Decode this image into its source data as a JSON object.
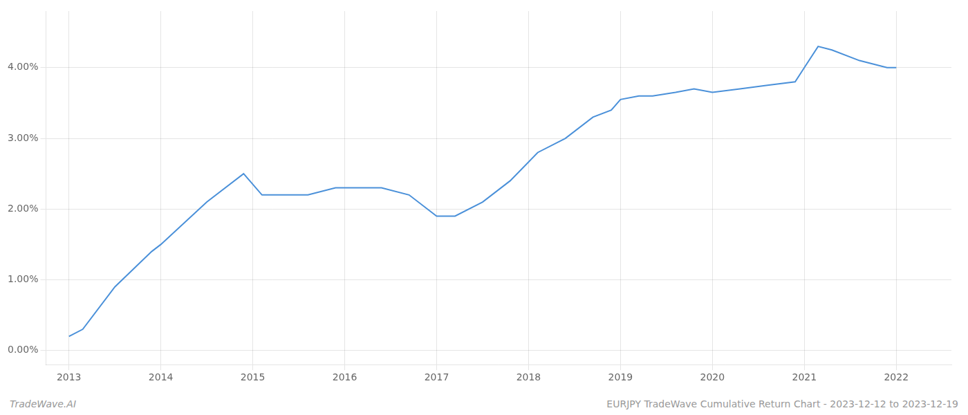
{
  "chart_data": {
    "type": "line",
    "x": [
      2013.0,
      2013.15,
      2013.5,
      2013.9,
      2014.0,
      2014.5,
      2014.9,
      2015.1,
      2015.3,
      2015.6,
      2015.9,
      2016.1,
      2016.4,
      2016.7,
      2017.0,
      2017.2,
      2017.5,
      2017.8,
      2018.1,
      2018.4,
      2018.7,
      2018.9,
      2019.0,
      2019.2,
      2019.35,
      2019.6,
      2019.8,
      2020.0,
      2020.3,
      2020.6,
      2020.9,
      2021.0,
      2021.15,
      2021.3,
      2021.6,
      2021.9,
      2022.0
    ],
    "values": [
      0.002,
      0.003,
      0.009,
      0.014,
      0.015,
      0.021,
      0.025,
      0.022,
      0.022,
      0.022,
      0.023,
      0.023,
      0.023,
      0.022,
      0.019,
      0.019,
      0.021,
      0.024,
      0.028,
      0.03,
      0.033,
      0.034,
      0.0355,
      0.036,
      0.036,
      0.0365,
      0.037,
      0.0365,
      0.037,
      0.0375,
      0.038,
      0.04,
      0.043,
      0.0425,
      0.041,
      0.04,
      0.04
    ],
    "color": "#4a90d9",
    "xlim": [
      2012.75,
      2022.6
    ],
    "xticks": [
      2013,
      2014,
      2015,
      2016,
      2017,
      2018,
      2019,
      2020,
      2021,
      2022
    ],
    "ylim": [
      -0.002,
      0.048
    ],
    "yticks": [
      {
        "value": 0.0,
        "label": "0.00%"
      },
      {
        "value": 0.01,
        "label": "1.00%"
      },
      {
        "value": 0.02,
        "label": "2.00%"
      },
      {
        "value": 0.03,
        "label": "3.00%"
      },
      {
        "value": 0.04,
        "label": "4.00%"
      }
    ],
    "grid": true,
    "annotations": [
      "TradeWave.AI",
      "EURJPY TradeWave Cumulative Return Chart - 2023-12-12 to 2023-12-19"
    ]
  }
}
